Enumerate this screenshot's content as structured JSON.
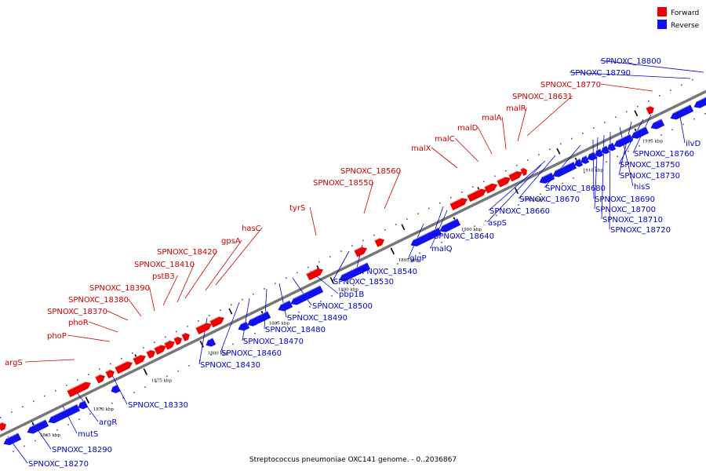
{
  "title": "Streptococcus pneumoniae OXC141 genome. - 0..2036867",
  "legend": [
    {
      "label": "Forward",
      "color": "#ee0000"
    },
    {
      "label": "Reverse",
      "color": "#1111ee"
    }
  ],
  "colors": {
    "forward": "#ee0000",
    "reverse": "#1111ee",
    "forward_label": "#cc0000",
    "reverse_label": "#0000cc",
    "backbone": "#777777"
  },
  "ticks": [
    "1865 kbp",
    "1870 kbp",
    "1875 kbp",
    "1880 kbp",
    "1885 kbp",
    "1890 kbp",
    "1895 kbp",
    "1900 kbp",
    "1905 kbp",
    "1910 kbp",
    "1915 kbp"
  ],
  "forward_labels": [
    "argS",
    "phoP",
    "phoR",
    "SPNOXC_18370",
    "SPNOXC_18380",
    "SPNOXC_18390",
    "pstB3",
    "SPNOXC_18410",
    "SPNOXC_18420",
    "gpsA",
    "hasC",
    "tyrS",
    "SPNOXC_18550",
    "SPNOXC_18560",
    "malX",
    "malC",
    "malD",
    "malA",
    "malR",
    "SPNOXC_18631",
    "SPNOXC_18770"
  ],
  "reverse_labels": [
    "SPNOXC_18270",
    "SPNOXC_18290",
    "mutS",
    "argR",
    "SPNOXC_18330",
    "SPNOXC_18430",
    "SPNOXC_18460",
    "SPNOXC_18470",
    "SPNOXC_18480",
    "SPNOXC_18490",
    "SPNOXC_18500",
    "pbp1B",
    "SPNOXC_18530",
    "SPNOXC_18540",
    "glgP",
    "malQ",
    "SPNOXC_18640",
    "aspS",
    "SPNOXC_18660",
    "SPNOXC_18670",
    "SPNOXC_18680",
    "SPNOXC_18690",
    "SPNOXC_18700",
    "SPNOXC_18710",
    "SPNOXC_18720",
    "hisS",
    "SPNOXC_18730",
    "SPNOXC_18750",
    "SPNOXC_18760",
    "ilvD",
    "SPNOXC_18790",
    "SPNOXC_18800"
  ]
}
